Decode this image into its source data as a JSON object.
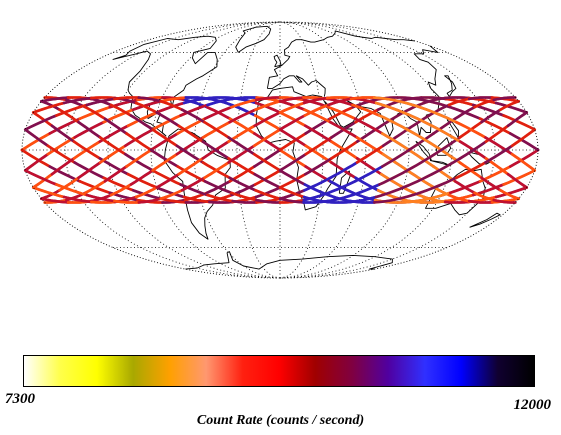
{
  "colorbar": {
    "min_label": "7300",
    "max_label": "12000",
    "title": "Count Rate (counts / second)",
    "stops": [
      "#ffffff",
      "#ffff4a",
      "#ffff00",
      "#a8a800",
      "#ffa000",
      "#ff9870",
      "#ff2010",
      "#ff0000",
      "#a00000",
      "#800040",
      "#5000a0",
      "#3030ff",
      "#0000ff",
      "#100030",
      "#000000"
    ]
  },
  "map": {
    "projection": "mollweide",
    "graticule_style": "dotted",
    "coast_color": "#000000",
    "track_colors": [
      "#ff5010",
      "#e02010",
      "#c01030",
      "#801050",
      "#ff8020",
      "#3020c0",
      "#2010a0",
      "#100030"
    ]
  }
}
